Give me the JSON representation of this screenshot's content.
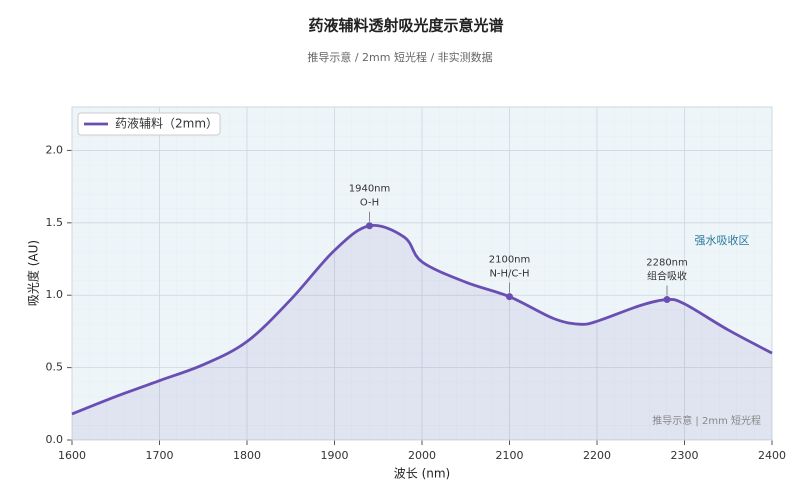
{
  "chart_data": {
    "type": "line",
    "title": "药液辅料透射吸光度示意光谱",
    "subtitle": "推导示意 / 2mm 短光程 / 非实测数据",
    "x_label": "波长 (nm)",
    "y_label": "吸光度 (AU)",
    "x": [
      1600,
      1650,
      1700,
      1750,
      1800,
      1850,
      1900,
      1940,
      1980,
      2000,
      2050,
      2100,
      2150,
      2180,
      2200,
      2250,
      2280,
      2300,
      2350,
      2400
    ],
    "series": [
      {
        "name": "药液辅料（2mm）",
        "color": "#6a4fb3",
        "values": [
          0.18,
          0.3,
          0.41,
          0.52,
          0.68,
          0.97,
          1.31,
          1.48,
          1.4,
          1.23,
          1.09,
          0.99,
          0.84,
          0.8,
          0.82,
          0.93,
          0.97,
          0.94,
          0.76,
          0.6
        ]
      }
    ],
    "xlim": [
      1600,
      2400
    ],
    "ylim": [
      0,
      2.3
    ],
    "xticks": [
      1600,
      1700,
      1800,
      1900,
      2000,
      2100,
      2200,
      2300,
      2400
    ],
    "yticks": [
      {
        "value": 0,
        "label": "0.0"
      },
      {
        "value": 0.5,
        "label": "0.5"
      },
      {
        "value": 1,
        "label": "1.0"
      },
      {
        "value": 1.5,
        "label": "1.5"
      },
      {
        "value": 2,
        "label": "2.0"
      }
    ],
    "grid": true,
    "legend": "upper left",
    "annotations": [
      {
        "x": 1940,
        "y": 1.48,
        "lines": [
          "1940nm",
          "O-H"
        ]
      },
      {
        "x": 2100,
        "y": 0.99,
        "lines": [
          "2100nm",
          "N-H/C-H"
        ]
      },
      {
        "x": 2280,
        "y": 0.97,
        "lines": [
          "2280nm",
          "组合吸收"
        ]
      }
    ],
    "region_label": "强水吸收区",
    "watermark": "推导示意 | 2mm 短光程"
  }
}
